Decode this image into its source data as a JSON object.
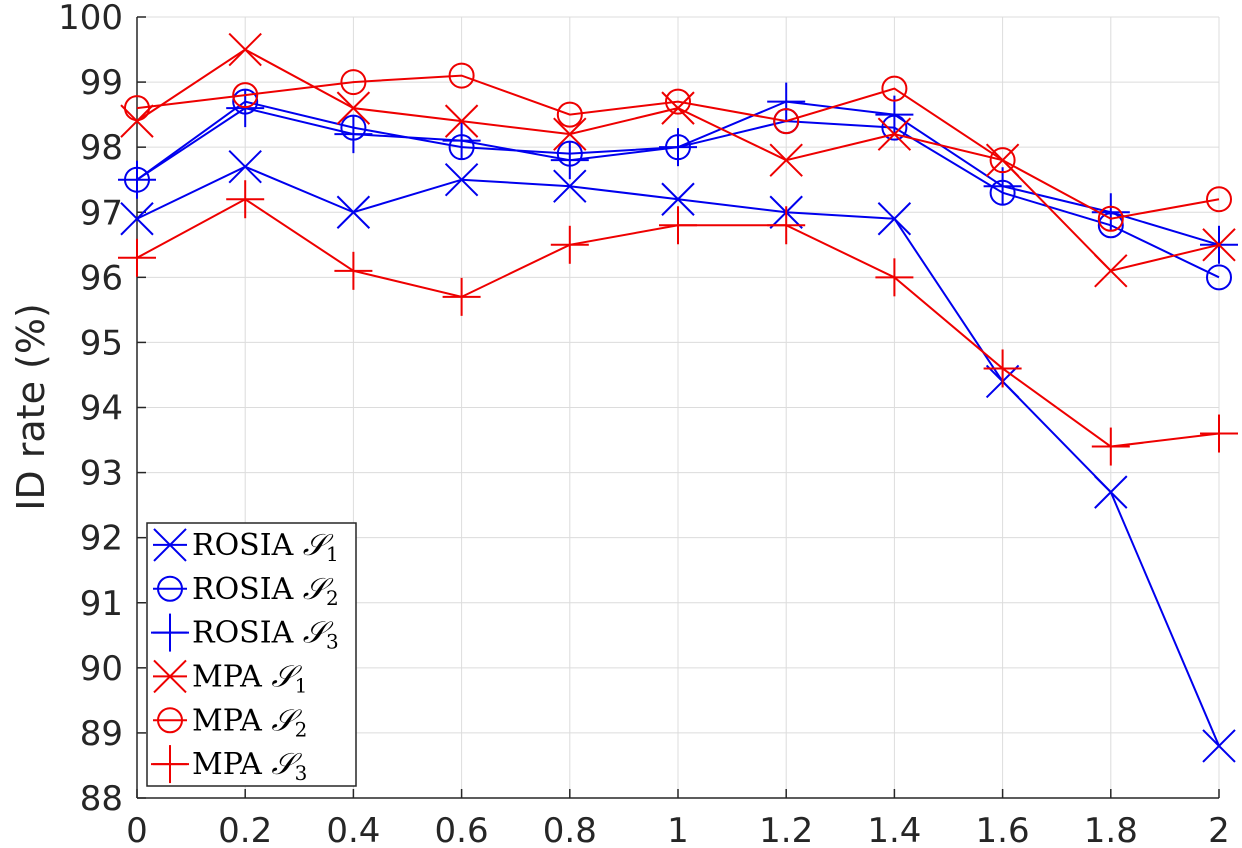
{
  "chart_data": {
    "type": "line",
    "title": "",
    "xlabel": "",
    "ylabel": "ID rate (%)",
    "xlim": [
      0,
      2
    ],
    "ylim": [
      88,
      100
    ],
    "grid": true,
    "legend_position": "bottom-left",
    "x": [
      0,
      0.2,
      0.4,
      0.6,
      0.8,
      1,
      1.2,
      1.4,
      1.6,
      1.8,
      2
    ],
    "x_tick_labels": [
      "0",
      "0.2",
      "0.4",
      "0.6",
      "0.8",
      "1",
      "1.2",
      "1.4",
      "1.6",
      "1.8",
      "2"
    ],
    "y_ticks": [
      88,
      89,
      90,
      91,
      92,
      93,
      94,
      95,
      96,
      97,
      98,
      99,
      100
    ],
    "y_tick_labels": [
      "88",
      "89",
      "90",
      "91",
      "92",
      "93",
      "94",
      "95",
      "96",
      "97",
      "98",
      "99",
      "100"
    ],
    "series": [
      {
        "name": "ROSIA",
        "sub": "1",
        "color": "#0000ee",
        "marker": "x",
        "values": [
          96.9,
          97.7,
          97.0,
          97.5,
          97.4,
          97.2,
          97.0,
          96.9,
          94.4,
          92.7,
          88.8
        ]
      },
      {
        "name": "ROSIA",
        "sub": "2",
        "color": "#0000ee",
        "marker": "o",
        "values": [
          97.5,
          98.7,
          98.3,
          98.0,
          97.9,
          98.0,
          98.4,
          98.3,
          97.3,
          96.8,
          96.0
        ]
      },
      {
        "name": "ROSIA",
        "sub": "3",
        "color": "#0000ee",
        "marker": "+",
        "values": [
          97.5,
          98.6,
          98.2,
          98.1,
          97.8,
          98.0,
          98.7,
          98.5,
          97.4,
          97.0,
          96.5
        ]
      },
      {
        "name": "MPA",
        "sub": "1",
        "color": "#ee0000",
        "marker": "x",
        "values": [
          98.4,
          99.5,
          98.6,
          98.4,
          98.2,
          98.6,
          97.8,
          98.2,
          97.8,
          96.1,
          96.5
        ]
      },
      {
        "name": "MPA",
        "sub": "2",
        "color": "#ee0000",
        "marker": "o",
        "values": [
          98.6,
          98.8,
          99.0,
          99.1,
          98.5,
          98.7,
          98.4,
          98.9,
          97.8,
          96.9,
          97.2
        ]
      },
      {
        "name": "MPA",
        "sub": "3",
        "color": "#ee0000",
        "marker": "+",
        "values": [
          96.3,
          97.2,
          96.1,
          95.7,
          96.5,
          96.8,
          96.8,
          96.0,
          94.6,
          93.4,
          93.6
        ]
      }
    ]
  }
}
